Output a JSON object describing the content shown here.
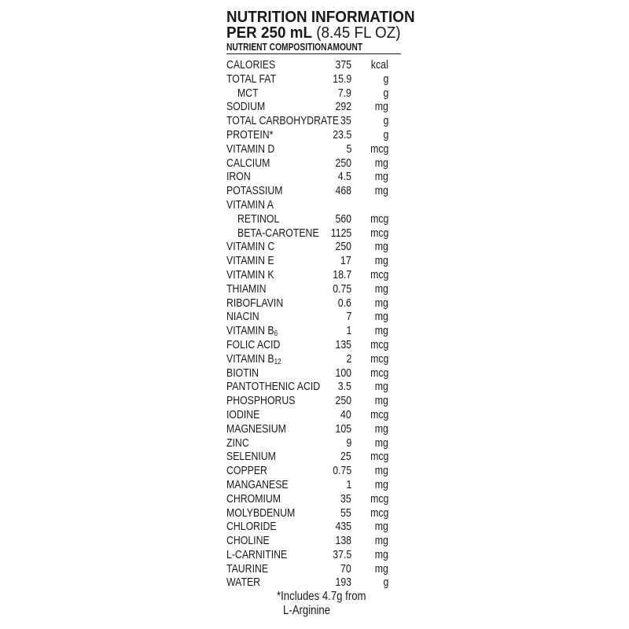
{
  "header": {
    "title": "NUTRITION INFORMATION",
    "serving_bold": "PER 250 mL",
    "serving_regular": "(8.45 FL OZ)",
    "col_nutrient": "NUTRIENT COMPOSITION",
    "col_amount": "AMOUNT"
  },
  "rows": [
    {
      "name": "CALORIES",
      "value": "375",
      "unit": "kcal"
    },
    {
      "name": "TOTAL FAT",
      "value": "15.9",
      "unit": "g"
    },
    {
      "name": "MCT",
      "value": "7.9",
      "unit": "g",
      "indent": true
    },
    {
      "name": "SODIUM",
      "value": "292",
      "unit": "mg"
    },
    {
      "name": "TOTAL CARBOHYDRATE",
      "value": "35",
      "unit": "g"
    },
    {
      "name": "PROTEIN*",
      "value": "23.5",
      "unit": "g"
    },
    {
      "name": "VITAMIN D",
      "value": "5",
      "unit": "mcg"
    },
    {
      "name": "CALCIUM",
      "value": "250",
      "unit": "mg"
    },
    {
      "name": "IRON",
      "value": "4.5",
      "unit": "mg"
    },
    {
      "name": "POTASSIUM",
      "value": "468",
      "unit": "mg"
    },
    {
      "name": "VITAMIN A",
      "value": "",
      "unit": ""
    },
    {
      "name": "RETINOL",
      "value": "560",
      "unit": "mcg",
      "indent": true
    },
    {
      "name": "BETA-CAROTENE",
      "value": "1125",
      "unit": "mcg",
      "indent": true
    },
    {
      "name": "VITAMIN C",
      "value": "250",
      "unit": "mg"
    },
    {
      "name": "VITAMIN E",
      "value": "17",
      "unit": "mg"
    },
    {
      "name": "VITAMIN K",
      "value": "18.7",
      "unit": "mcg"
    },
    {
      "name": "THIAMIN",
      "value": "0.75",
      "unit": "mg"
    },
    {
      "name": "RIBOFLAVIN",
      "value": "0.6",
      "unit": "mg"
    },
    {
      "name": "NIACIN",
      "value": "7",
      "unit": "mg"
    },
    {
      "name": "VITAMIN B",
      "sub": "6",
      "value": "1",
      "unit": "mg"
    },
    {
      "name": "FOLIC ACID",
      "value": "135",
      "unit": "mcg"
    },
    {
      "name": "VITAMIN B",
      "sub": "12",
      "value": "2",
      "unit": "mcg"
    },
    {
      "name": "BIOTIN",
      "value": "100",
      "unit": "mcg"
    },
    {
      "name": "PANTOTHENIC ACID",
      "value": "3.5",
      "unit": "mg"
    },
    {
      "name": "PHOSPHORUS",
      "value": "250",
      "unit": "mg"
    },
    {
      "name": "IODINE",
      "value": "40",
      "unit": "mcg"
    },
    {
      "name": "MAGNESIUM",
      "value": "105",
      "unit": "mg"
    },
    {
      "name": "ZINC",
      "value": "9",
      "unit": "mg"
    },
    {
      "name": "SELENIUM",
      "value": "25",
      "unit": "mcg"
    },
    {
      "name": "COPPER",
      "value": "0.75",
      "unit": "mg"
    },
    {
      "name": "MANGANESE",
      "value": "1",
      "unit": "mg"
    },
    {
      "name": "CHROMIUM",
      "value": "35",
      "unit": "mcg"
    },
    {
      "name": "MOLYBDENUM",
      "value": "55",
      "unit": "mcg"
    },
    {
      "name": "CHLORIDE",
      "value": "435",
      "unit": "mg"
    },
    {
      "name": "CHOLINE",
      "value": "138",
      "unit": "mg"
    },
    {
      "name": "L-CARNITINE",
      "value": "37.5",
      "unit": "mg"
    },
    {
      "name": "TAURINE",
      "value": "70",
      "unit": "mg"
    },
    {
      "name": "WATER",
      "value": "193",
      "unit": "g"
    }
  ],
  "footnote": {
    "line1": "*Includes 4.7g from",
    "line2": "L-Arginine"
  }
}
